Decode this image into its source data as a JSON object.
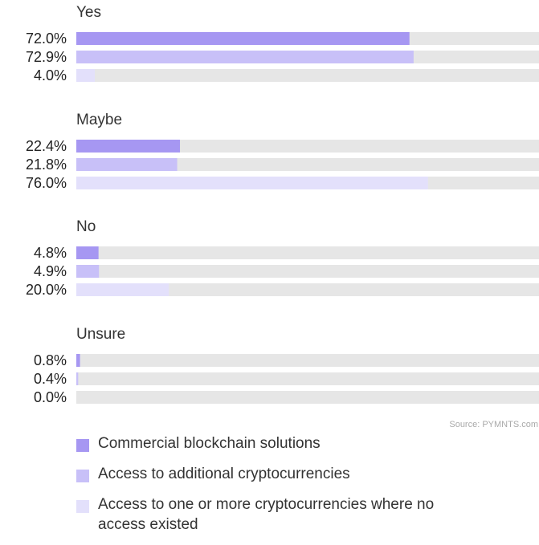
{
  "chart_data": {
    "type": "bar",
    "orientation": "horizontal",
    "groups": [
      {
        "label": "Yes",
        "values": [
          72.0,
          72.9,
          4.0
        ],
        "labels": [
          "72.0%",
          "72.9%",
          "4.0%"
        ]
      },
      {
        "label": "Maybe",
        "values": [
          22.4,
          21.8,
          76.0
        ],
        "labels": [
          "22.4%",
          "21.8%",
          "76.0%"
        ]
      },
      {
        "label": "No",
        "values": [
          4.8,
          4.9,
          20.0
        ],
        "labels": [
          "4.8%",
          "4.9%",
          "20.0%"
        ]
      },
      {
        "label": "Unsure",
        "values": [
          0.8,
          0.4,
          0.0
        ],
        "labels": [
          "0.8%",
          "0.4%",
          "0.0%"
        ]
      }
    ],
    "series": [
      {
        "name": "Commercial blockchain solutions",
        "color": "#a697f2"
      },
      {
        "name": "Access to additional cryptocurrencies",
        "color": "#c8c0f8"
      },
      {
        "name": "Access to one or more cryptocurrencies where no access existed",
        "color": "#e3e0fb"
      }
    ],
    "track_color": "#e6e6e6",
    "xlim": [
      0,
      100
    ],
    "source": "Source: PYMNTS.com"
  }
}
